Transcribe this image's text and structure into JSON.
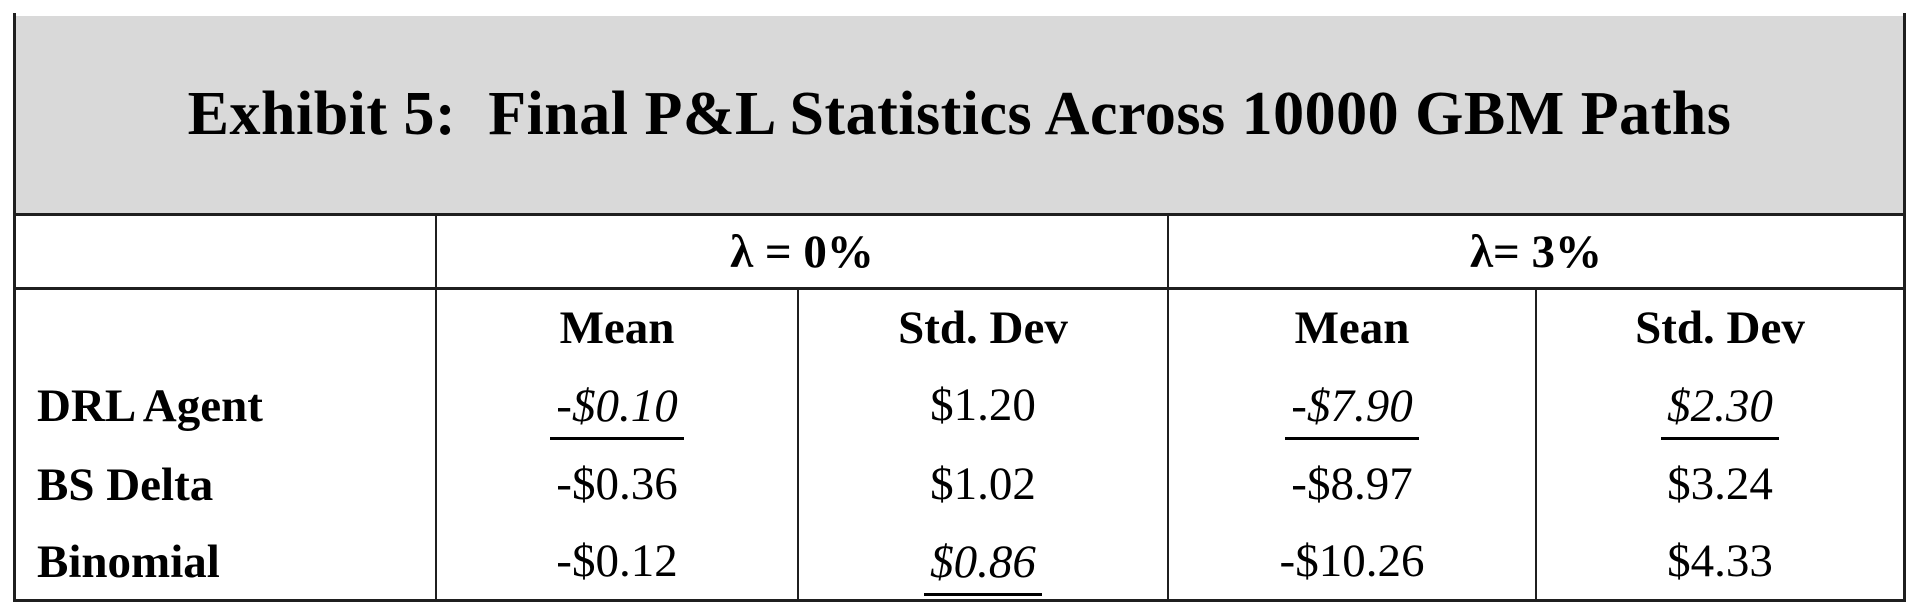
{
  "title": "Exhibit 5:  Final P&L Statistics Across 10000 GBM Paths",
  "table": {
    "group_headers": [
      {
        "label": "λ = 0%"
      },
      {
        "label": "λ= 3%"
      }
    ],
    "sub_headers": [
      "Mean",
      "Std. Dev",
      "Mean",
      "Std. Dev"
    ],
    "rows": [
      {
        "label": "DRL Agent",
        "values": [
          {
            "text": "-$0.10",
            "emphasized": true
          },
          {
            "text": "$1.20",
            "emphasized": false
          },
          {
            "text": "-$7.90",
            "emphasized": true
          },
          {
            "text": "$2.30",
            "emphasized": true
          }
        ]
      },
      {
        "label": "BS Delta",
        "values": [
          {
            "text": "-$0.36",
            "emphasized": false
          },
          {
            "text": "$1.02",
            "emphasized": false
          },
          {
            "text": "-$8.97",
            "emphasized": false
          },
          {
            "text": "$3.24",
            "emphasized": false
          }
        ]
      },
      {
        "label": "Binomial",
        "values": [
          {
            "text": "-$0.12",
            "emphasized": false
          },
          {
            "text": "$0.86",
            "emphasized": true
          },
          {
            "text": "-$10.26",
            "emphasized": false
          },
          {
            "text": "$4.33",
            "emphasized": false
          }
        ]
      }
    ]
  },
  "colors": {
    "title_background": "#d9d9d9",
    "border": "#1f1f1f",
    "text": "#000000"
  }
}
